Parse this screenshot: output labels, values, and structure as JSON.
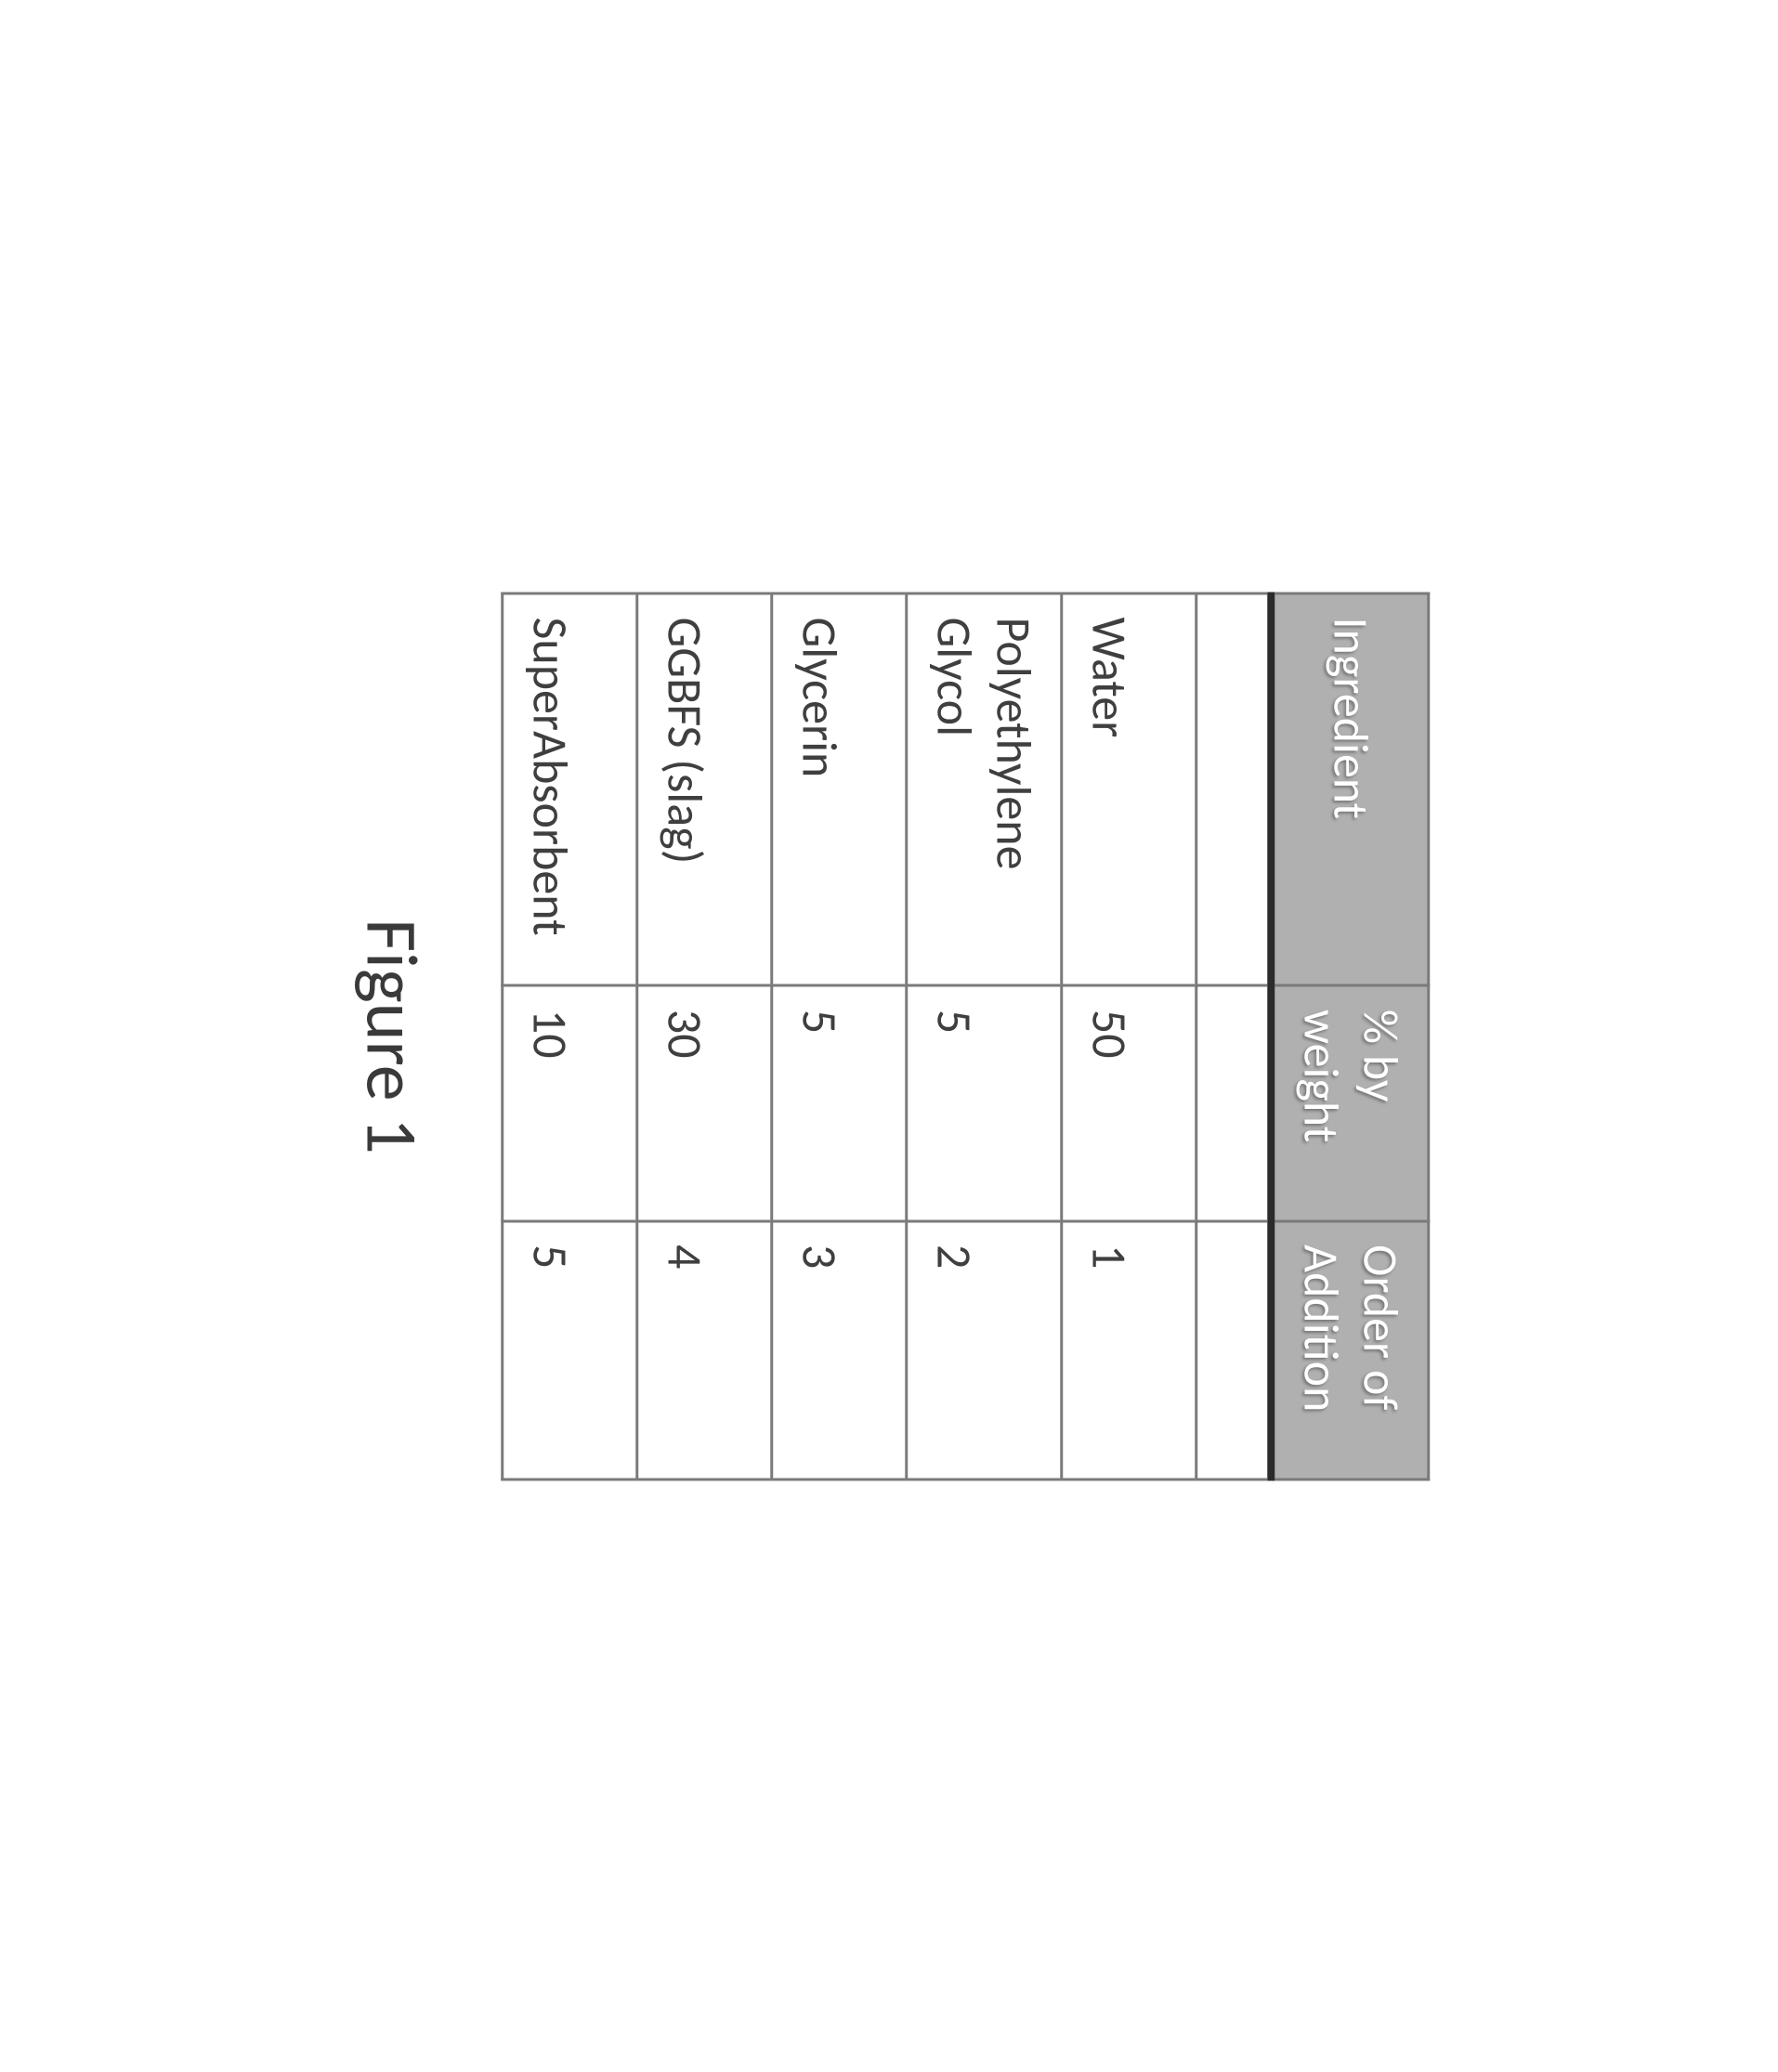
{
  "table": {
    "header_bg": "#b0b0b0",
    "header_text_color": "#ffffff",
    "cell_text_color": "#3f3f3f",
    "border_color": "#7a7a7a",
    "header_bottom_border": "#2b2b2b",
    "columns": [
      {
        "label": "Ingredient"
      },
      {
        "label": "% by weight"
      },
      {
        "label": "Order of Addition"
      }
    ],
    "rows": [
      {
        "ingredient": "",
        "pct": "",
        "order": ""
      },
      {
        "ingredient": "Water",
        "pct": "50",
        "order": "1"
      },
      {
        "ingredient": "Polyethylene Glycol",
        "pct": "5",
        "order": "2"
      },
      {
        "ingredient": "Glycerin",
        "pct": "5",
        "order": "3"
      },
      {
        "ingredient": "GGBFS (slag)",
        "pct": "30",
        "order": "4"
      },
      {
        "ingredient": "SuperAbsorbent",
        "pct": "10",
        "order": "5"
      }
    ]
  },
  "caption": "Figure 1"
}
